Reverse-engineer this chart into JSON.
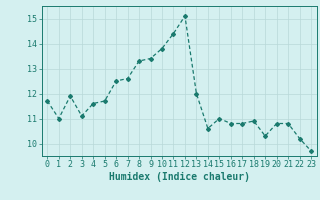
{
  "x": [
    0,
    1,
    2,
    3,
    4,
    5,
    6,
    7,
    8,
    9,
    10,
    11,
    12,
    13,
    14,
    15,
    16,
    17,
    18,
    19,
    20,
    21,
    22,
    23
  ],
  "y": [
    11.7,
    11.0,
    11.9,
    11.1,
    11.6,
    11.7,
    12.5,
    12.6,
    13.3,
    13.4,
    13.8,
    14.4,
    15.1,
    12.0,
    10.6,
    11.0,
    10.8,
    10.8,
    10.9,
    10.3,
    10.8,
    10.8,
    10.2,
    9.7
  ],
  "line_color": "#1a7a6e",
  "marker": "D",
  "markersize": 2.0,
  "linewidth": 0.9,
  "xlabel": "Humidex (Indice chaleur)",
  "ylim": [
    9.5,
    15.5
  ],
  "xlim": [
    -0.5,
    23.5
  ],
  "yticks": [
    10,
    11,
    12,
    13,
    14,
    15
  ],
  "xticks": [
    0,
    1,
    2,
    3,
    4,
    5,
    6,
    7,
    8,
    9,
    10,
    11,
    12,
    13,
    14,
    15,
    16,
    17,
    18,
    19,
    20,
    21,
    22,
    23
  ],
  "bg_color": "#d4f0f0",
  "grid_color": "#b8d8d8",
  "tick_color": "#1a7a6e",
  "label_color": "#1a7a6e",
  "xlabel_fontsize": 7,
  "tick_fontsize": 6
}
